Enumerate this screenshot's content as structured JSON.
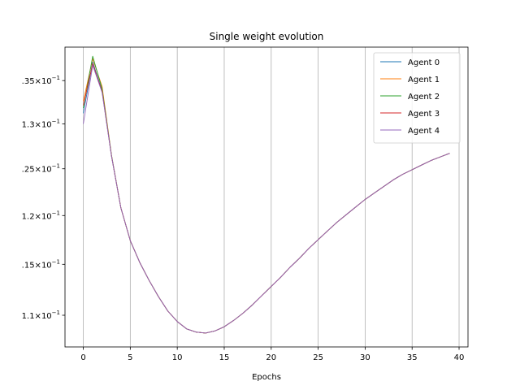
{
  "chart_data": {
    "type": "line",
    "title": "Single weight evolution",
    "xlabel": "Epochs",
    "ylabel": "",
    "xlim": [
      -1.95,
      40.95
    ],
    "ylim": [
      1.07,
      1.39
    ],
    "yscale": "log",
    "grid": "x-only",
    "legend_position": "top-right",
    "xticks": [
      0,
      5,
      10,
      15,
      20,
      25,
      30,
      35,
      40
    ],
    "xtick_labels": [
      "0",
      "5",
      "10",
      "15",
      "20",
      "25",
      "30",
      "35",
      "40"
    ],
    "yticks": [
      1.1,
      1.15,
      1.2,
      1.25,
      1.3,
      1.35
    ],
    "ytick_labels": [
      {
        "prefix": "1.1×10",
        "exp": "−1"
      },
      {
        "prefix": ".15×10",
        "exp": "−1"
      },
      {
        "prefix": "1.2×10",
        "exp": "−1"
      },
      {
        "prefix": ".25×10",
        "exp": "−1"
      },
      {
        "prefix": "1.3×10",
        "exp": "−1"
      },
      {
        "prefix": ".35×10",
        "exp": "−1"
      }
    ],
    "x": [
      0,
      1,
      2,
      3,
      4,
      5,
      6,
      7,
      8,
      9,
      10,
      11,
      12,
      13,
      14,
      15,
      16,
      17,
      18,
      19,
      20,
      21,
      22,
      23,
      24,
      25,
      26,
      27,
      28,
      29,
      30,
      31,
      32,
      33,
      34,
      35,
      36,
      37,
      38,
      39
    ],
    "series": [
      {
        "name": "Agent 0",
        "color": "#1f77b4",
        "values": [
          1.312,
          1.372,
          1.338,
          1.264,
          1.208,
          1.174,
          1.152,
          1.134,
          1.118,
          1.104,
          1.094,
          1.087,
          1.084,
          1.083,
          1.085,
          1.089,
          1.095,
          1.102,
          1.11,
          1.119,
          1.128,
          1.137,
          1.147,
          1.156,
          1.166,
          1.175,
          1.184,
          1.193,
          1.201,
          1.209,
          1.217,
          1.224,
          1.231,
          1.238,
          1.244,
          1.249,
          1.254,
          1.259,
          1.263,
          1.267
        ]
      },
      {
        "name": "Agent 1",
        "color": "#ff7f0e",
        "values": [
          1.326,
          1.376,
          1.343,
          1.265,
          1.208,
          1.174,
          1.152,
          1.134,
          1.118,
          1.104,
          1.094,
          1.087,
          1.084,
          1.083,
          1.085,
          1.089,
          1.095,
          1.102,
          1.11,
          1.119,
          1.128,
          1.137,
          1.147,
          1.156,
          1.166,
          1.175,
          1.184,
          1.193,
          1.201,
          1.209,
          1.217,
          1.224,
          1.231,
          1.238,
          1.244,
          1.249,
          1.254,
          1.259,
          1.263,
          1.267
        ]
      },
      {
        "name": "Agent 2",
        "color": "#2ca02c",
        "values": [
          1.318,
          1.379,
          1.34,
          1.265,
          1.208,
          1.174,
          1.152,
          1.134,
          1.118,
          1.104,
          1.094,
          1.087,
          1.084,
          1.083,
          1.085,
          1.089,
          1.095,
          1.102,
          1.11,
          1.119,
          1.128,
          1.137,
          1.147,
          1.156,
          1.166,
          1.175,
          1.184,
          1.193,
          1.201,
          1.209,
          1.217,
          1.224,
          1.231,
          1.238,
          1.244,
          1.249,
          1.254,
          1.259,
          1.263,
          1.267
        ]
      },
      {
        "name": "Agent 3",
        "color": "#d62728",
        "values": [
          1.321,
          1.37,
          1.337,
          1.264,
          1.208,
          1.174,
          1.152,
          1.134,
          1.118,
          1.104,
          1.094,
          1.087,
          1.084,
          1.083,
          1.085,
          1.089,
          1.095,
          1.102,
          1.11,
          1.119,
          1.128,
          1.137,
          1.147,
          1.156,
          1.166,
          1.175,
          1.184,
          1.193,
          1.201,
          1.209,
          1.217,
          1.224,
          1.231,
          1.238,
          1.244,
          1.249,
          1.254,
          1.259,
          1.263,
          1.267
        ]
      },
      {
        "name": "Agent 4",
        "color": "#9467bd",
        "values": [
          1.3,
          1.368,
          1.336,
          1.264,
          1.208,
          1.174,
          1.152,
          1.134,
          1.118,
          1.104,
          1.094,
          1.087,
          1.084,
          1.083,
          1.085,
          1.089,
          1.095,
          1.102,
          1.11,
          1.119,
          1.128,
          1.137,
          1.147,
          1.156,
          1.166,
          1.175,
          1.184,
          1.193,
          1.201,
          1.209,
          1.217,
          1.224,
          1.231,
          1.238,
          1.244,
          1.249,
          1.254,
          1.259,
          1.263,
          1.267
        ]
      }
    ]
  }
}
